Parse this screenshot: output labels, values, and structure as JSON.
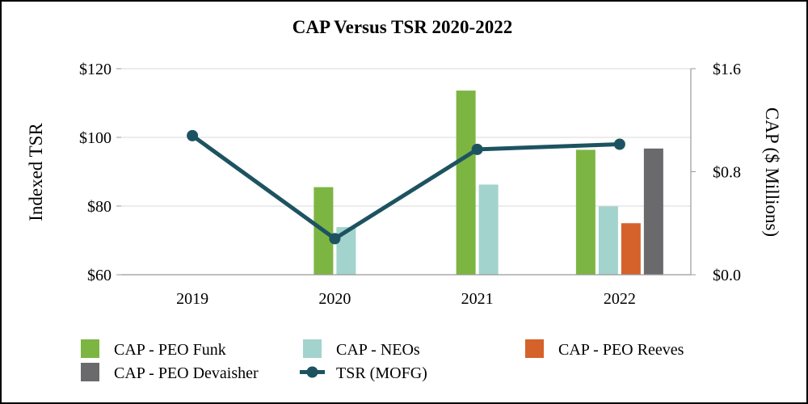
{
  "chart_data": {
    "type": "bar+line",
    "title": "CAP Versus TSR 2020-2022",
    "categories": [
      "2019",
      "2020",
      "2021",
      "2022"
    ],
    "y_left": {
      "label": "Indexed TSR",
      "ticks": [
        "$60",
        "$80",
        "$100",
        "$120"
      ],
      "tick_values": [
        60,
        80,
        100,
        120
      ],
      "ylim": [
        60,
        120
      ]
    },
    "y_right": {
      "label": "CAP ($ Millions)",
      "ticks": [
        "$0.0",
        "$0.8",
        "$1.6"
      ],
      "tick_values": [
        0,
        0.8,
        1.6
      ],
      "ylim": [
        0,
        1.6
      ]
    },
    "series": [
      {
        "name": "CAP - PEO Funk",
        "type": "bar",
        "axis": "right",
        "color": "#7db543",
        "values": [
          null,
          0.68,
          1.43,
          0.97
        ]
      },
      {
        "name": "CAP - NEOs",
        "type": "bar",
        "axis": "right",
        "color": "#a3d3cd",
        "values": [
          null,
          0.37,
          0.7,
          0.53
        ]
      },
      {
        "name": "CAP - PEO Reeves",
        "type": "bar",
        "axis": "right",
        "color": "#d5622b",
        "values": [
          null,
          null,
          null,
          0.4
        ]
      },
      {
        "name": "CAP - PEO Devaisher",
        "type": "bar",
        "axis": "right",
        "color": "#6a6a6c",
        "values": [
          null,
          null,
          null,
          0.98
        ]
      },
      {
        "name": "TSR (MOFG)",
        "type": "line",
        "axis": "left",
        "color": "#1d5361",
        "values": [
          100.5,
          70.5,
          96.5,
          98
        ]
      }
    ],
    "legend": [
      "CAP - PEO Funk",
      "CAP - NEOs",
      "CAP - PEO Reeves",
      "CAP - PEO Devaisher",
      "TSR (MOFG)"
    ],
    "grid": true
  }
}
